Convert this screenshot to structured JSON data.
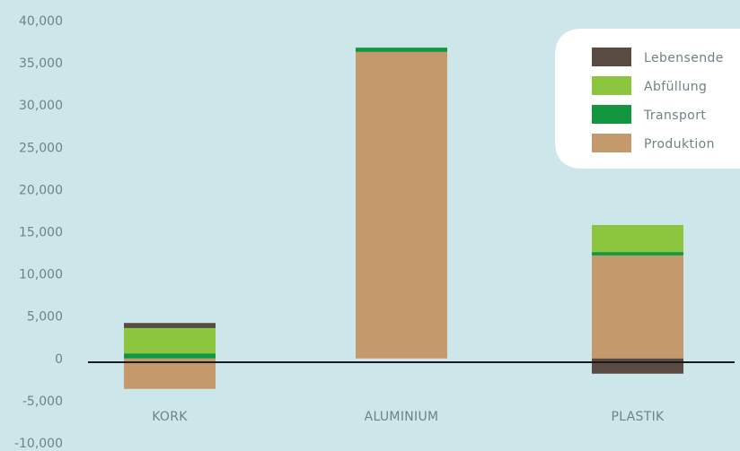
{
  "chart_data": {
    "type": "bar",
    "stacked": true,
    "categories": [
      "KORK",
      "ALUMINIUM",
      "PLASTIK"
    ],
    "series": [
      {
        "name": "Produktion",
        "color": "#c49a6c",
        "values": [
          -3600,
          36300,
          12200
        ]
      },
      {
        "name": "Transport",
        "color": "#12973f",
        "values": [
          600,
          500,
          400
        ]
      },
      {
        "name": "Abfüllung",
        "color": "#8cc63f",
        "values": [
          3000,
          0,
          3200
        ]
      },
      {
        "name": "Lebensende",
        "color": "#594a42",
        "values": [
          600,
          0,
          -1800
        ]
      }
    ],
    "y_ticks": [
      "40,000",
      "35,000",
      "30,000",
      "25,000",
      "20,000",
      "15,000",
      "10,000",
      "5,000",
      "0",
      "-5,000",
      "-10,000"
    ],
    "ylim": [
      -10000,
      40000
    ],
    "grid": false,
    "legend_position": "top-right",
    "title": "",
    "xlabel": "",
    "ylabel": ""
  }
}
